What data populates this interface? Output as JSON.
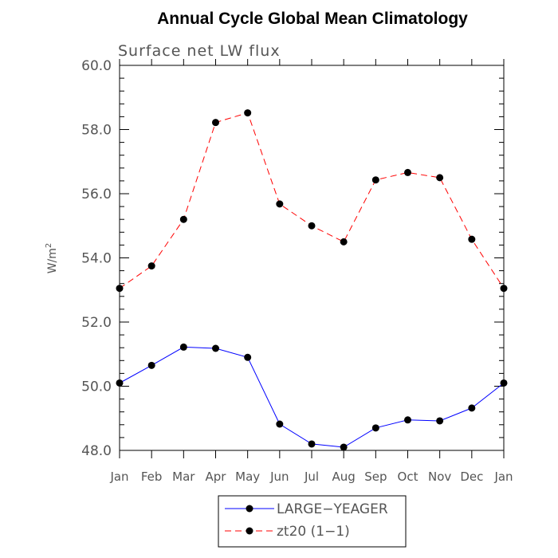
{
  "chart_data": {
    "type": "line",
    "title": "Annual Cycle Global Mean Climatology",
    "subtitle": "Surface net LW flux",
    "ylabel": "W/m",
    "ylabel_superscript": "2",
    "ylim": [
      48.0,
      60.0
    ],
    "yticks": [
      "48.0",
      "50.0",
      "52.0",
      "54.0",
      "56.0",
      "58.0",
      "60.0"
    ],
    "categories": [
      "Jan",
      "Feb",
      "Mar",
      "Apr",
      "May",
      "Jun",
      "Jul",
      "Aug",
      "Sep",
      "Oct",
      "Nov",
      "Dec",
      "Jan"
    ],
    "series": [
      {
        "name": "LARGE−YEAGER",
        "color": "#0000ff",
        "style": "solid",
        "values": [
          50.1,
          50.65,
          51.22,
          51.18,
          50.9,
          48.82,
          48.2,
          48.1,
          48.7,
          48.95,
          48.92,
          49.32,
          50.1
        ]
      },
      {
        "name": "zt20 (1−1)",
        "color": "#ff0000",
        "style": "dashed",
        "values": [
          53.05,
          53.75,
          55.2,
          58.22,
          58.52,
          55.68,
          55.0,
          54.5,
          56.43,
          56.66,
          56.5,
          54.58,
          53.05
        ]
      }
    ],
    "legend_position": "bottom-center",
    "grid": false
  }
}
